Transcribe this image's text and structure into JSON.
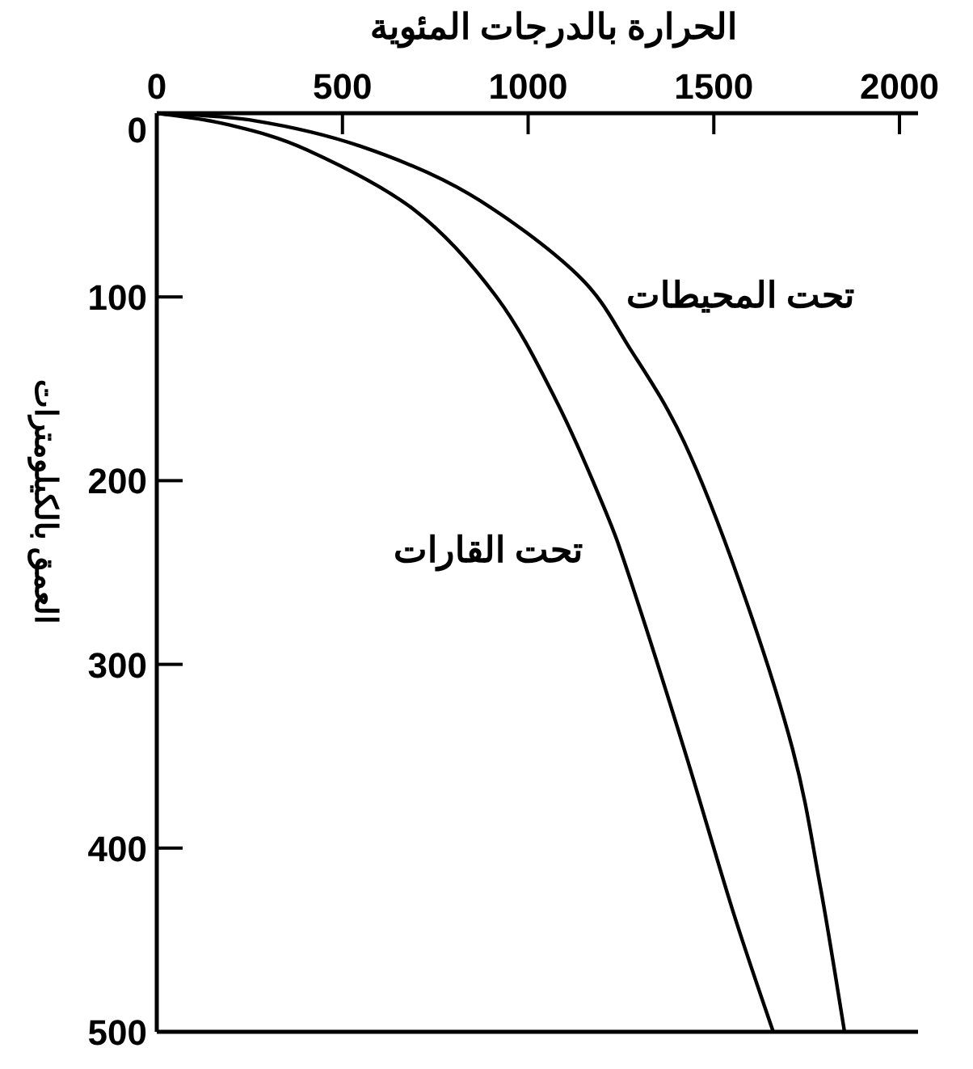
{
  "chart_data": {
    "type": "line",
    "xlabel": "الحرارة بالدرجات المئوية",
    "ylabel": "العمق بالكيلومترات",
    "xlim": [
      0,
      2050
    ],
    "xticks": [
      0,
      500,
      1000,
      1500,
      2000
    ],
    "ylim": [
      500,
      0
    ],
    "yticks": [
      0,
      100,
      200,
      300,
      400,
      500
    ],
    "series": [
      {
        "name": "تحت القارات",
        "color": "#000000",
        "x": [
          0,
          187,
          405,
          696,
          915,
          1072,
          1203,
          1277,
          1420,
          1551,
          1660
        ],
        "values": [
          0,
          6,
          20,
          53,
          100,
          155,
          214,
          255,
          346,
          434,
          500
        ]
      },
      {
        "name": "تحت المحيطات",
        "color": "#000000",
        "x": [
          0,
          261,
          549,
          841,
          1133,
          1277,
          1420,
          1569,
          1712,
          1786,
          1852
        ],
        "values": [
          0,
          4,
          18,
          44,
          88,
          129,
          179,
          255,
          346,
          420,
          500
        ]
      }
    ],
    "grid": false,
    "marker": "none",
    "line_style": "solid"
  }
}
